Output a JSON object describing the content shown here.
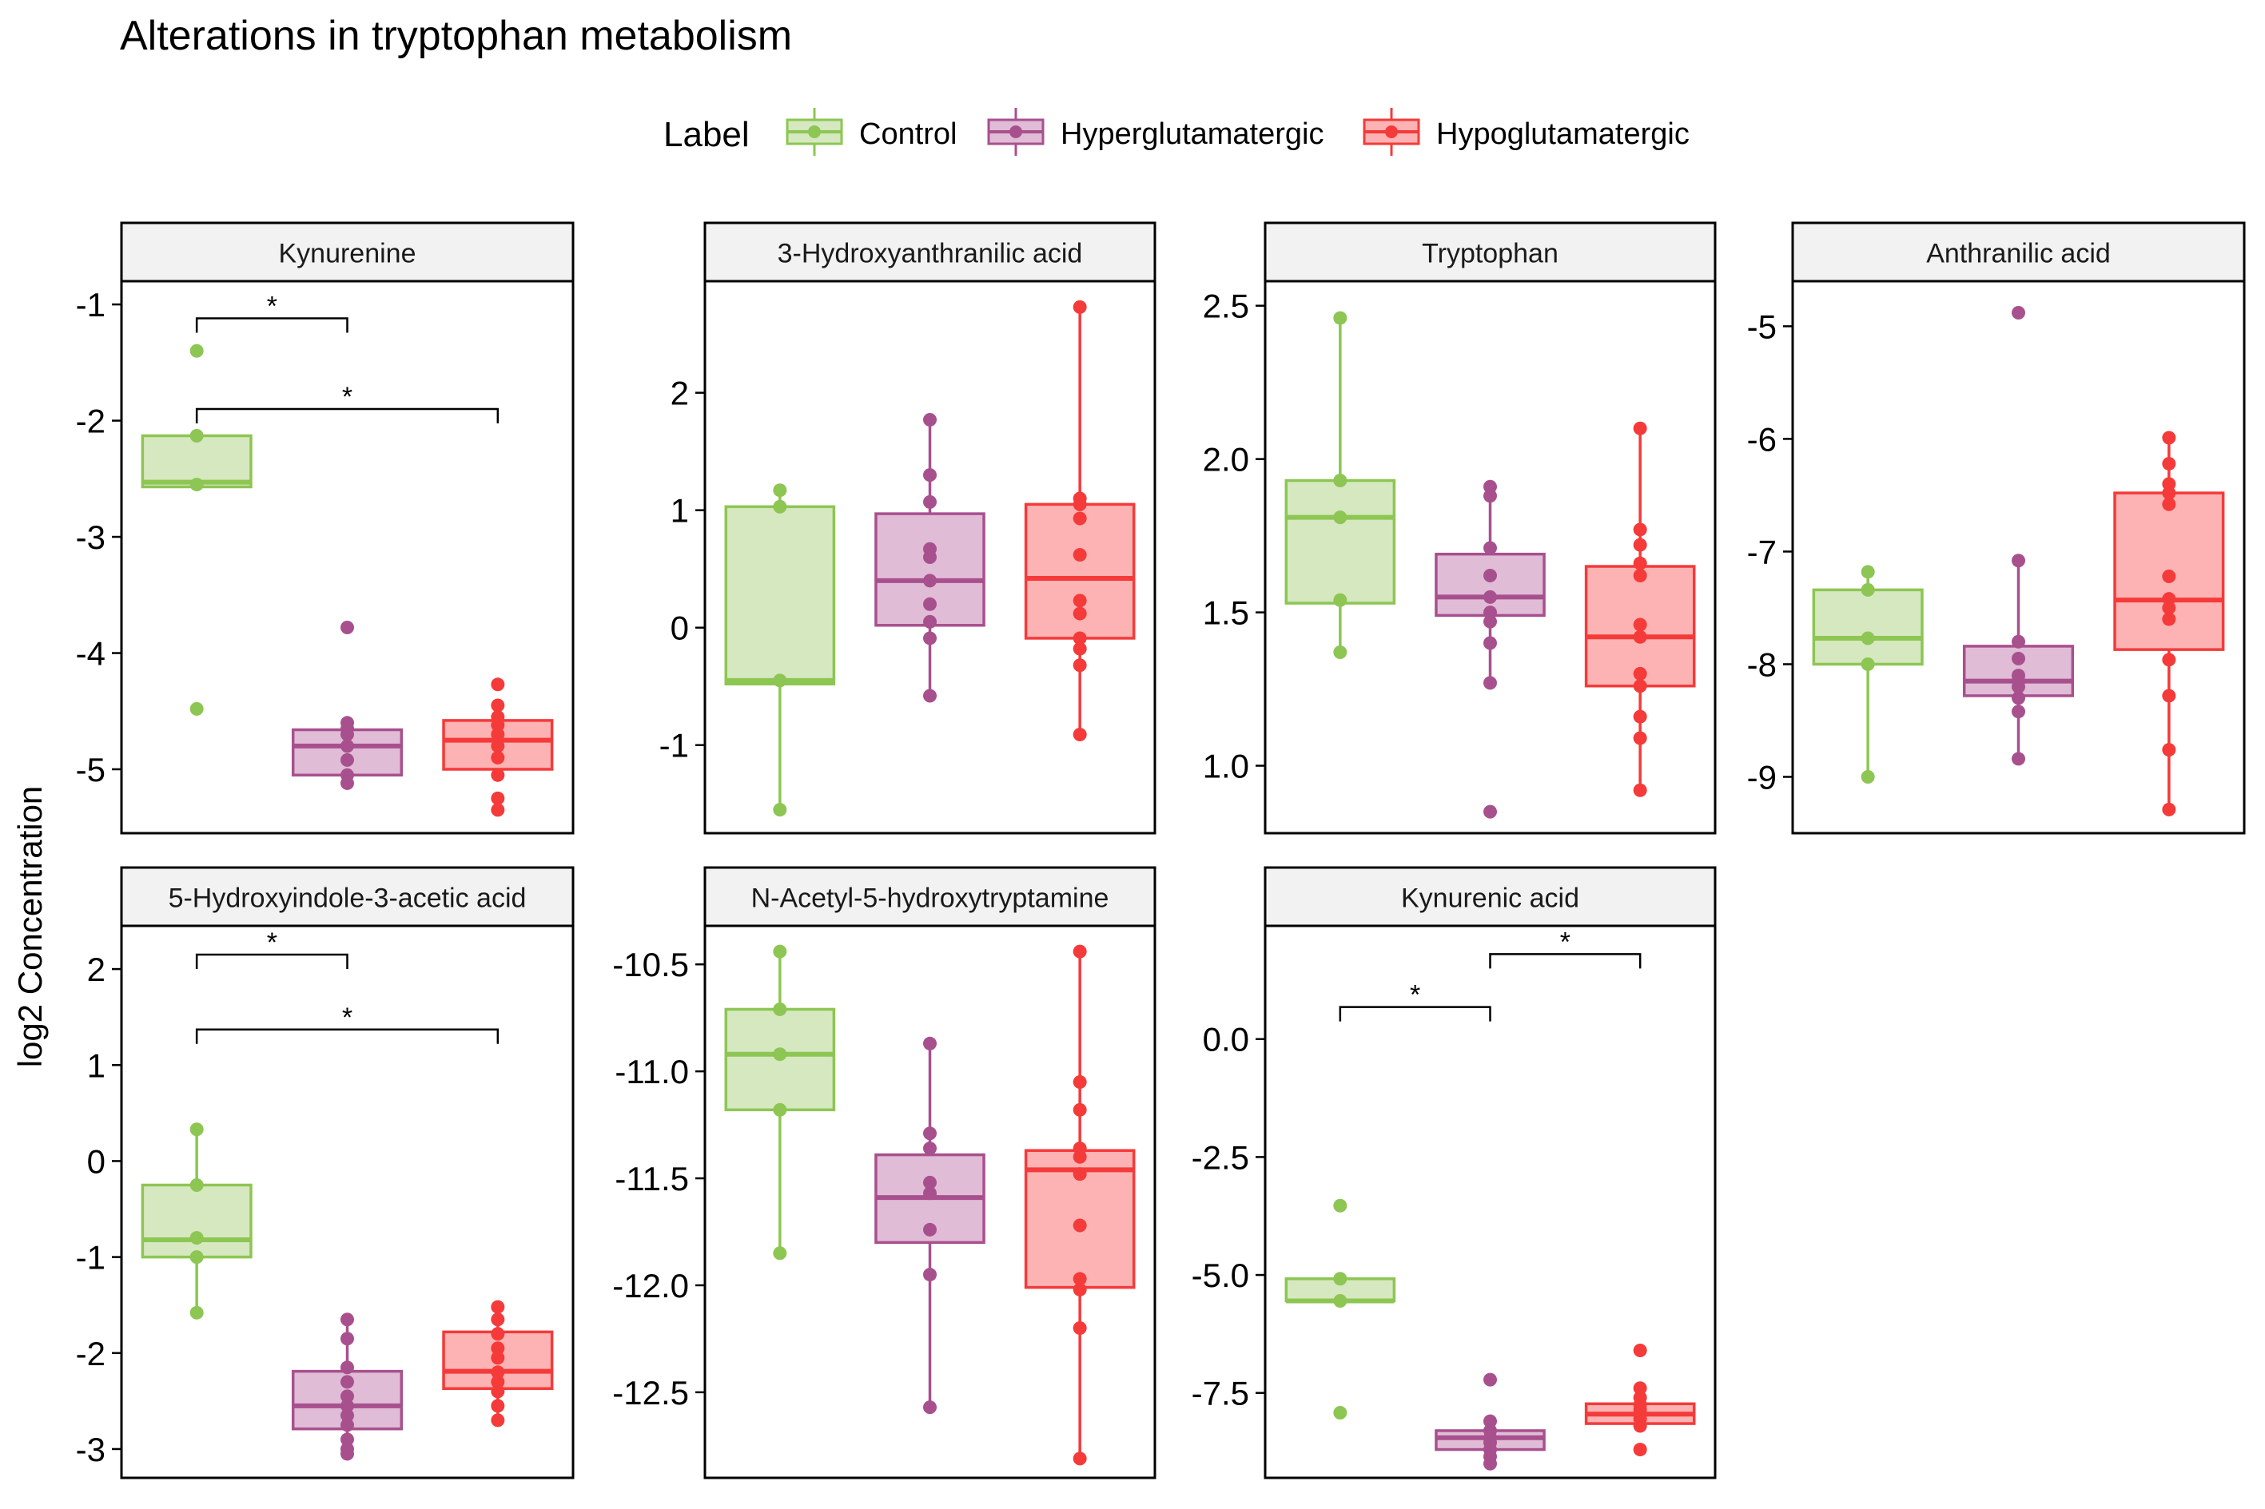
{
  "chart_data": {
    "type": "boxplot",
    "title": "Alterations in tryptophan metabolism",
    "ylabel": "log2 Concentration",
    "xlabel": "",
    "legend": {
      "title": "Label",
      "position": "top",
      "entries": [
        "Control",
        "Hyperglutamatergic",
        "Hypoglutamatergic"
      ]
    },
    "groups": [
      "Control",
      "Hyperglutamatergic",
      "Hypoglutamatergic"
    ],
    "colors": {
      "Control": {
        "line": "#8DC653",
        "fill": "#D5E8BF"
      },
      "Hyperglutamatergic": {
        "line": "#A8508E",
        "fill": "#E0BCD6"
      },
      "Hypoglutamatergic": {
        "line": "#F53A3A",
        "fill": "#FDB3B3"
      }
    },
    "grid": false,
    "panels": [
      {
        "name": "Kynurenine",
        "ylim": [
          -5.55,
          -0.8
        ],
        "yticks": [
          -1,
          -2,
          -3,
          -4,
          -5
        ],
        "boxes": [
          {
            "q1": -2.57,
            "median": -2.53,
            "q3": -2.13,
            "lo": -2.57,
            "hi": -2.13
          },
          {
            "q1": -5.05,
            "median": -4.8,
            "q3": -4.66,
            "lo": -5.05,
            "hi": -4.66
          },
          {
            "q1": -5.0,
            "median": -4.75,
            "q3": -4.58,
            "lo": -5.0,
            "hi": -4.58
          }
        ],
        "points": [
          [
            -1.4,
            -2.13,
            -2.55,
            -4.48
          ],
          [
            -3.78,
            -4.6,
            -4.65,
            -4.7,
            -4.8,
            -4.92,
            -5.05,
            -5.12
          ],
          [
            -4.27,
            -4.45,
            -4.55,
            -4.62,
            -4.7,
            -4.8,
            -4.9,
            -5.05,
            -5.25,
            -5.35
          ]
        ],
        "brackets": [
          {
            "from": 0,
            "to": 1,
            "y": -1.12,
            "label": "*"
          },
          {
            "from": 0,
            "to": 2,
            "y": -1.9,
            "label": "*"
          }
        ]
      },
      {
        "name": "3-Hydroxyanthranilic acid",
        "ylim": [
          -1.75,
          2.95
        ],
        "yticks": [
          2,
          1,
          0,
          -1
        ],
        "boxes": [
          {
            "q1": -0.48,
            "median": -0.45,
            "q3": 1.03,
            "lo": -1.55,
            "hi": 1.17
          },
          {
            "q1": 0.02,
            "median": 0.4,
            "q3": 0.97,
            "lo": -0.58,
            "hi": 1.77
          },
          {
            "q1": -0.09,
            "median": 0.42,
            "q3": 1.05,
            "lo": -0.91,
            "hi": 2.73
          }
        ],
        "points": [
          [
            1.17,
            1.03,
            -0.45,
            -1.55
          ],
          [
            1.77,
            1.3,
            1.07,
            0.67,
            0.6,
            0.4,
            0.2,
            0.05,
            -0.09,
            -0.58
          ],
          [
            2.73,
            1.1,
            1.05,
            0.93,
            0.62,
            0.23,
            0.12,
            -0.09,
            -0.18,
            -0.32,
            -0.91
          ]
        ],
        "brackets": []
      },
      {
        "name": "Tryptophan",
        "ylim": [
          0.78,
          2.58
        ],
        "yticks": [
          2.5,
          2.0,
          1.5,
          1.0
        ],
        "boxes": [
          {
            "q1": 1.53,
            "median": 1.81,
            "q3": 1.93,
            "lo": 1.37,
            "hi": 2.46
          },
          {
            "q1": 1.49,
            "median": 1.55,
            "q3": 1.69,
            "lo": 1.27,
            "hi": 1.91
          },
          {
            "q1": 1.26,
            "median": 1.42,
            "q3": 1.65,
            "lo": 0.92,
            "hi": 2.1
          }
        ],
        "points": [
          [
            2.46,
            1.93,
            1.81,
            1.54,
            1.37
          ],
          [
            1.91,
            1.88,
            1.71,
            1.62,
            1.55,
            1.5,
            1.47,
            1.4,
            1.27,
            0.85
          ],
          [
            2.1,
            1.77,
            1.72,
            1.66,
            1.62,
            1.46,
            1.42,
            1.3,
            1.26,
            1.16,
            1.09,
            0.92
          ]
        ],
        "brackets": []
      },
      {
        "name": "Anthranilic acid",
        "ylim": [
          -9.5,
          -4.6
        ],
        "yticks": [
          -5,
          -6,
          -7,
          -8,
          -9
        ],
        "boxes": [
          {
            "q1": -8.0,
            "median": -7.77,
            "q3": -7.34,
            "lo": -9.0,
            "hi": -7.18
          },
          {
            "q1": -8.28,
            "median": -8.15,
            "q3": -7.84,
            "lo": -8.84,
            "hi": -7.1
          },
          {
            "q1": -7.87,
            "median": -7.43,
            "q3": -6.48,
            "lo": -9.29,
            "hi": -5.99
          }
        ],
        "points": [
          [
            -7.18,
            -7.34,
            -7.77,
            -8.0,
            -9.0
          ],
          [
            -4.88,
            -7.08,
            -7.8,
            -7.95,
            -8.1,
            -8.15,
            -8.2,
            -8.3,
            -8.42,
            -8.84
          ],
          [
            -5.99,
            -6.22,
            -6.4,
            -6.48,
            -6.58,
            -7.22,
            -7.42,
            -7.5,
            -7.6,
            -7.96,
            -8.28,
            -8.76,
            -9.29
          ]
        ],
        "brackets": []
      },
      {
        "name": "5-Hydroxyindole-3-acetic acid",
        "ylim": [
          -3.3,
          2.45
        ],
        "yticks": [
          2,
          1,
          0,
          -1,
          -2,
          -3
        ],
        "boxes": [
          {
            "q1": -1.0,
            "median": -0.82,
            "q3": -0.25,
            "lo": -1.58,
            "hi": 0.33
          },
          {
            "q1": -2.79,
            "median": -2.55,
            "q3": -2.19,
            "lo": -3.05,
            "hi": -1.65
          },
          {
            "q1": -2.37,
            "median": -2.19,
            "q3": -1.78,
            "lo": -2.72,
            "hi": -1.52
          }
        ],
        "points": [
          [
            0.33,
            -0.25,
            -0.8,
            -1.0,
            -1.58
          ],
          [
            -1.65,
            -1.85,
            -2.15,
            -2.3,
            -2.45,
            -2.55,
            -2.65,
            -2.75,
            -2.9,
            -3.0,
            -3.05
          ],
          [
            -1.52,
            -1.65,
            -1.8,
            -1.95,
            -2.05,
            -2.2,
            -2.3,
            -2.4,
            -2.55,
            -2.7
          ]
        ],
        "brackets": [
          {
            "from": 0,
            "to": 1,
            "y": 2.15,
            "label": "*"
          },
          {
            "from": 0,
            "to": 2,
            "y": 1.37,
            "label": "*"
          }
        ]
      },
      {
        "name": "N-Acetyl-5-hydroxytryptamine",
        "ylim": [
          -12.9,
          -10.32
        ],
        "yticks": [
          -10.5,
          -11.0,
          -11.5,
          -12.0,
          -12.5
        ],
        "boxes": [
          {
            "q1": -11.18,
            "median": -10.92,
            "q3": -10.71,
            "lo": -11.85,
            "hi": -10.44
          },
          {
            "q1": -11.8,
            "median": -11.59,
            "q3": -11.39,
            "lo": -12.57,
            "hi": -10.87
          },
          {
            "q1": -12.01,
            "median": -11.46,
            "q3": -11.37,
            "lo": -12.81,
            "hi": -10.44
          }
        ],
        "points": [
          [
            -10.44,
            -10.71,
            -10.92,
            -11.18,
            -11.85
          ],
          [
            -10.87,
            -11.29,
            -11.36,
            -11.52,
            -11.57,
            -11.74,
            -11.95,
            -12.57
          ],
          [
            -10.44,
            -11.05,
            -11.18,
            -11.36,
            -11.4,
            -11.48,
            -11.72,
            -11.97,
            -12.02,
            -12.2,
            -12.81
          ]
        ],
        "brackets": []
      },
      {
        "name": "Kynurenic acid",
        "ylim": [
          -9.3,
          2.4
        ],
        "yticks": [
          0.0,
          -2.5,
          -5.0,
          -7.5
        ],
        "boxes": [
          {
            "q1": -5.55,
            "median": -5.55,
            "q3": -5.08,
            "lo": -5.55,
            "hi": -5.08
          },
          {
            "q1": -8.7,
            "median": -8.45,
            "q3": -8.3,
            "lo": -8.7,
            "hi": -8.3
          },
          {
            "q1": -8.15,
            "median": -7.95,
            "q3": -7.73,
            "lo": -8.15,
            "hi": -7.73
          }
        ],
        "points": [
          [
            -3.53,
            -5.08,
            -5.55,
            -7.92
          ],
          [
            -7.22,
            -8.1,
            -8.3,
            -8.45,
            -8.55,
            -8.7,
            -8.85,
            -9.0
          ],
          [
            -6.6,
            -7.4,
            -7.6,
            -7.75,
            -7.85,
            -7.95,
            -8.05,
            -8.2,
            -8.7
          ]
        ],
        "brackets": [
          {
            "from": 1,
            "to": 2,
            "y": 1.8,
            "label": "*"
          },
          {
            "from": 0,
            "to": 1,
            "y": 0.68,
            "label": "*"
          }
        ]
      }
    ]
  }
}
